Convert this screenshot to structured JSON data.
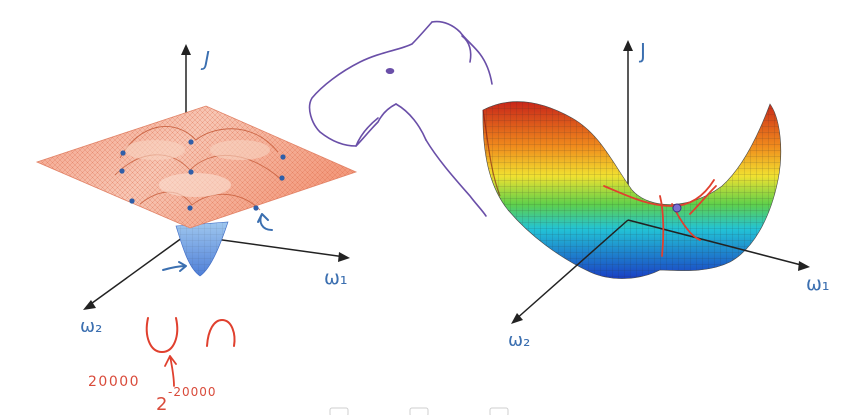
{
  "left_plot": {
    "axis_j": "J",
    "axis_w1": "ω₁",
    "axis_w2": "ω₂"
  },
  "right_plot": {
    "axis_j": "J",
    "axis_w1": "ω₁",
    "axis_w2": "ω₂"
  },
  "annotations": {
    "value_20000": "20000",
    "power_base": "2",
    "power_exp": "-20000"
  },
  "colors": {
    "ink_blue": "#3b6fb0",
    "ink_red": "#d94b3b",
    "ink_purple": "#6a4fa8",
    "surface_orange": "#f07f5c",
    "surface_blue": "#3a62c9"
  }
}
